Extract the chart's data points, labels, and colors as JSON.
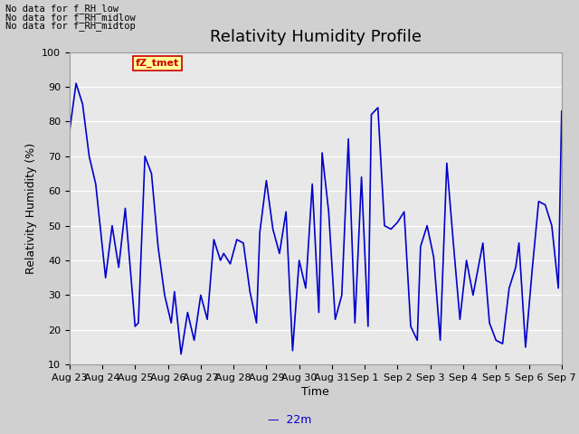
{
  "title": "Relativity Humidity Profile",
  "xlabel": "Time",
  "ylabel": "Relativity Humidity (%)",
  "ylim": [
    10,
    100
  ],
  "yticks": [
    10,
    20,
    30,
    40,
    50,
    60,
    70,
    80,
    90,
    100
  ],
  "line_color": "#0000cc",
  "line_width": 1.2,
  "legend_label": "22m",
  "no_data_texts": [
    "No data for f_RH_low",
    "No data for f_RH_midlow",
    "No data for f_RH_midtop"
  ],
  "legend_box_label": "fZ_tmet",
  "legend_box_color": "#ffff99",
  "legend_box_text_color": "#cc0000",
  "xtick_labels": [
    "Aug 23",
    "Aug 24",
    "Aug 25",
    "Aug 26",
    "Aug 27",
    "Aug 28",
    "Aug 29",
    "Aug 30",
    "Aug 31",
    "Sep 1",
    "Sep 2",
    "Sep 3",
    "Sep 4",
    "Sep 5",
    "Sep 6",
    "Sep 7"
  ],
  "fig_bg_color": "#d0d0d0",
  "plot_bg_color": "#e8e8e8",
  "grid_color": "#ffffff",
  "x_values": [
    0.0,
    0.2,
    0.4,
    0.6,
    0.8,
    1.1,
    1.3,
    1.5,
    1.7,
    2.0,
    2.1,
    2.3,
    2.5,
    2.7,
    2.9,
    3.1,
    3.2,
    3.4,
    3.6,
    3.8,
    4.0,
    4.2,
    4.4,
    4.6,
    4.7,
    4.9,
    5.1,
    5.3,
    5.5,
    5.7,
    5.8,
    6.0,
    6.2,
    6.4,
    6.6,
    6.8,
    7.0,
    7.2,
    7.4,
    7.6,
    7.7,
    7.9,
    8.1,
    8.3,
    8.5,
    8.7,
    8.9,
    9.1,
    9.2,
    9.4,
    9.6,
    9.8,
    10.0,
    10.2,
    10.4,
    10.6,
    10.7,
    10.9,
    11.1,
    11.3,
    11.5,
    11.7,
    11.9,
    12.1,
    12.3,
    12.4,
    12.6,
    12.8,
    13.0,
    13.2,
    13.4,
    13.6,
    13.7,
    13.9,
    14.1,
    14.3,
    14.5,
    14.7,
    14.9,
    15.0
  ],
  "y_values": [
    77,
    91,
    85,
    70,
    62,
    35,
    50,
    38,
    55,
    21,
    22,
    70,
    65,
    44,
    30,
    22,
    31,
    13,
    25,
    17,
    30,
    23,
    46,
    40,
    42,
    39,
    46,
    45,
    31,
    22,
    48,
    63,
    49,
    42,
    54,
    14,
    40,
    32,
    62,
    25,
    71,
    54,
    23,
    30,
    75,
    22,
    64,
    21,
    82,
    84,
    50,
    49,
    51,
    54,
    21,
    17,
    44,
    50,
    41,
    17,
    68,
    45,
    23,
    40,
    30,
    35,
    45,
    22,
    17,
    16,
    32,
    38,
    45,
    15,
    37,
    57,
    56,
    50,
    32,
    83
  ],
  "title_fontsize": 13,
  "tick_fontsize": 8,
  "label_fontsize": 9
}
